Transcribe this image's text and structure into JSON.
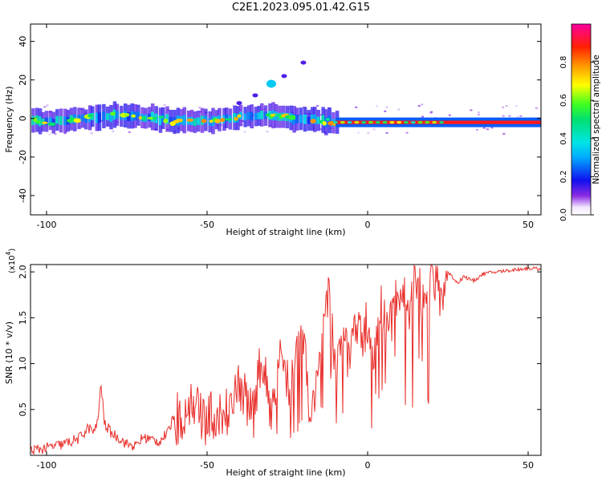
{
  "figure_title": "C2E1.2023.095.01.42.G15",
  "colors": {
    "snr_line": "#e8302c",
    "dense_band_low": "#3a1fd8",
    "signal_high": "#ff1010",
    "background": "#ffffff"
  },
  "chart_data": [
    {
      "type": "heatmap",
      "title": "C2E1.2023.095.01.42.G15",
      "xlabel": "Height of straight line (km)",
      "ylabel": "Frequency (Hz)",
      "xlim": [
        -105,
        54
      ],
      "ylim": [
        -50,
        49
      ],
      "xticks": [
        -100,
        -50,
        0,
        50
      ],
      "xtick_labels": [
        "-100",
        "-50",
        "0",
        "50"
      ],
      "yticks": [
        -40,
        -20,
        0,
        20,
        40
      ],
      "ytick_labels": [
        "-40",
        "-20",
        "0",
        "20",
        "40"
      ],
      "colorbar": {
        "label": "Normalized spectral amplitude",
        "range": [
          0,
          1
        ],
        "ticks": [
          0.0,
          0.2,
          0.4,
          0.6,
          0.8
        ],
        "tick_labels": [
          "0.0",
          "0.2",
          "0.4",
          "0.6",
          "0.8"
        ],
        "colormap": "rainbow (white to violet to blue to cyan to green to yellow to orange to red to magenta)"
      },
      "features": {
        "main_band": {
          "center_frequency_hz": 0,
          "segments": [
            {
              "x_from": -105,
              "x_to": -10,
              "center_hz": 0,
              "width_hz": 6,
              "character": "noisy multi-component"
            },
            {
              "x_from": -10,
              "x_to": 54,
              "center_hz": -2,
              "width_hz": 3,
              "character": "single strong line"
            }
          ]
        },
        "secondary_trace": [
          {
            "x": -40,
            "y": 8
          },
          {
            "x": -35,
            "y": 12
          },
          {
            "x": -30,
            "y": 18
          },
          {
            "x": -26,
            "y": 22
          },
          {
            "x": -20,
            "y": 29
          }
        ]
      }
    },
    {
      "type": "line",
      "title": "",
      "xlabel": "Height of straight line (km)",
      "ylabel": "SNR (10 * v/v)",
      "y_scale_label": "(x10",
      "y_scale_exponent": "4",
      "y_scale_suffix": ")",
      "xlim": [
        -105,
        54
      ],
      "ylim": [
        0,
        2.08
      ],
      "xticks": [
        -100,
        -50,
        0,
        50
      ],
      "xtick_labels": [
        "-100",
        "-50",
        "0",
        "50"
      ],
      "yticks": [
        0.5,
        1.0,
        1.5,
        2.0
      ],
      "ytick_labels": [
        "0.5",
        "1.0",
        "1.5",
        "2.0"
      ],
      "series": [
        {
          "name": "SNR",
          "x": [
            -105,
            -100,
            -95,
            -90,
            -87,
            -85,
            -84,
            -83,
            -82,
            -80,
            -77,
            -75,
            -72,
            -70,
            -65,
            -62,
            -60,
            -58,
            -55,
            -52,
            -50,
            -48,
            -45,
            -40,
            -36,
            -33,
            -30,
            -27,
            -24,
            -20,
            -18,
            -16,
            -14,
            -12,
            -10,
            -8,
            -6,
            -4,
            -2,
            0,
            2,
            4,
            6,
            8,
            10,
            13,
            15,
            18,
            20,
            23,
            25,
            28,
            30,
            33,
            36,
            40,
            45,
            50,
            54
          ],
          "y": [
            0.05,
            0.08,
            0.12,
            0.18,
            0.3,
            0.25,
            0.4,
            0.78,
            0.35,
            0.25,
            0.18,
            0.12,
            0.1,
            0.2,
            0.15,
            0.25,
            0.5,
            0.45,
            0.55,
            0.55,
            0.35,
            0.5,
            0.4,
            0.8,
            0.45,
            1.05,
            0.5,
            1.15,
            0.7,
            1.35,
            0.3,
            0.9,
            1.2,
            1.82,
            0.85,
            1.35,
            1.1,
            1.38,
            1.25,
            1.45,
            1.1,
            1.62,
            1.35,
            1.55,
            1.8,
            1.6,
            1.9,
            1.6,
            1.95,
            1.72,
            2.0,
            1.88,
            1.95,
            1.9,
            1.98,
            2.0,
            2.02,
            2.04,
            2.03
          ]
        }
      ]
    }
  ]
}
